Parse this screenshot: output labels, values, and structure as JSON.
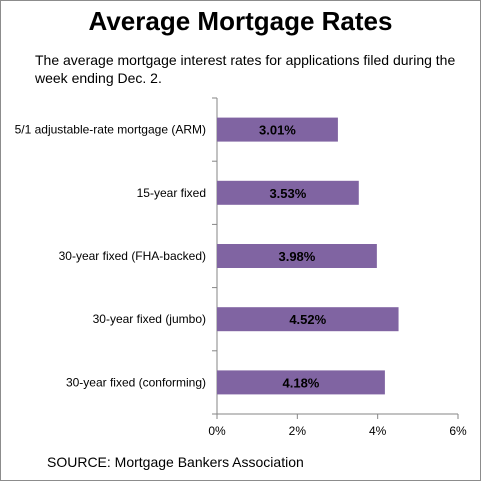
{
  "chart_data": {
    "type": "bar",
    "orientation": "horizontal",
    "title": "Average Mortgage Rates",
    "subtitle": "The average mortgage interest rates for applications filed during the week ending Dec. 2.",
    "categories": [
      "5/1 adjustable-rate mortgage (ARM)",
      "15-year fixed",
      "30-year fixed (FHA-backed)",
      "30-year fixed (jumbo)",
      "30-year fixed (conforming)"
    ],
    "values": [
      3.01,
      3.53,
      3.98,
      4.52,
      4.18
    ],
    "data_labels": [
      "3.01%",
      "3.53%",
      "3.98%",
      "4.52%",
      "4.18%"
    ],
    "xlim": [
      0,
      6
    ],
    "xticks": [
      0,
      2,
      4,
      6
    ],
    "xtick_labels": [
      "0%",
      "2%",
      "4%",
      "6%"
    ],
    "grid": false,
    "legend": "none",
    "bar_color": "#8064a2",
    "source": "SOURCE: Mortgage Bankers Association"
  }
}
